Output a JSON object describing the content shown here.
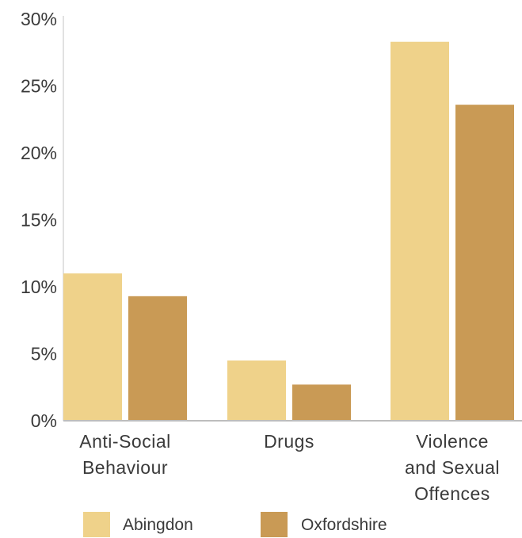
{
  "chart_data": {
    "type": "bar",
    "categories": [
      [
        "Anti-Social",
        "Behaviour"
      ],
      [
        "Drugs"
      ],
      [
        "Violence",
        "and Sexual",
        "Offences"
      ]
    ],
    "series": [
      {
        "name": "Abingdon",
        "values": [
          11,
          4.5,
          28.3
        ],
        "color": "#efd28a"
      },
      {
        "name": "Oxfordshire",
        "values": [
          9.3,
          2.7,
          23.6
        ],
        "color": "#c99a55"
      }
    ],
    "ylim": [
      0,
      30
    ],
    "yticks": [
      0,
      5,
      10,
      15,
      20,
      25,
      30
    ],
    "ytick_suffix": "%",
    "grid": false,
    "legend_position": "bottom"
  }
}
